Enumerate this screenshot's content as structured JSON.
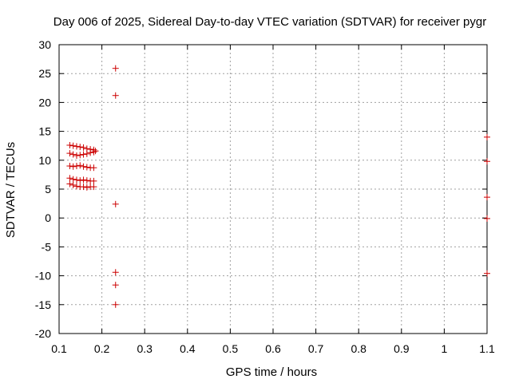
{
  "chart_data": {
    "type": "scatter",
    "title": "Day 006 of 2025, Sidereal Day-to-day VTEC variation (SDTVAR) for receiver pygr",
    "xlabel": "GPS time / hours",
    "ylabel": "SDTVAR / TECUs",
    "xlim": [
      0.1,
      1.1
    ],
    "ylim": [
      -20,
      30
    ],
    "grid": true,
    "marker": "+",
    "color": "#cc0000",
    "x_ticks": [
      {
        "value": 0.1,
        "label": "0.1"
      },
      {
        "value": 0.2,
        "label": "0.2"
      },
      {
        "value": 0.3,
        "label": "0.3"
      },
      {
        "value": 0.4,
        "label": "0.4"
      },
      {
        "value": 0.5,
        "label": "0.5"
      },
      {
        "value": 0.6,
        "label": "0.6"
      },
      {
        "value": 0.7,
        "label": "0.7"
      },
      {
        "value": 0.8,
        "label": "0.8"
      },
      {
        "value": 0.9,
        "label": "0.9"
      },
      {
        "value": 1.0,
        "label": "1"
      },
      {
        "value": 1.1,
        "label": "1.1"
      }
    ],
    "y_ticks": [
      {
        "value": 30,
        "label": "30"
      },
      {
        "value": 25,
        "label": "25"
      },
      {
        "value": 20,
        "label": "20"
      },
      {
        "value": 15,
        "label": "15"
      },
      {
        "value": 10,
        "label": "10"
      },
      {
        "value": 5,
        "label": "5"
      },
      {
        "value": 0,
        "label": "0"
      },
      {
        "value": -5,
        "label": "-5"
      },
      {
        "value": -10,
        "label": "-10"
      },
      {
        "value": -15,
        "label": "-15"
      },
      {
        "value": -20,
        "label": "-20"
      }
    ],
    "series": [
      {
        "name": "SDTVAR",
        "points": [
          [
            0.125,
            12.6
          ],
          [
            0.133,
            12.5
          ],
          [
            0.141,
            12.4
          ],
          [
            0.149,
            12.3
          ],
          [
            0.157,
            12.2
          ],
          [
            0.165,
            12.0
          ],
          [
            0.173,
            11.9
          ],
          [
            0.181,
            11.8
          ],
          [
            0.185,
            11.6
          ],
          [
            0.125,
            11.2
          ],
          [
            0.133,
            11.0
          ],
          [
            0.141,
            10.8
          ],
          [
            0.149,
            10.9
          ],
          [
            0.157,
            11.0
          ],
          [
            0.165,
            11.1
          ],
          [
            0.173,
            11.3
          ],
          [
            0.181,
            11.4
          ],
          [
            0.125,
            9.0
          ],
          [
            0.133,
            8.9
          ],
          [
            0.141,
            9.0
          ],
          [
            0.149,
            9.1
          ],
          [
            0.157,
            8.9
          ],
          [
            0.165,
            8.8
          ],
          [
            0.173,
            8.7
          ],
          [
            0.181,
            8.7
          ],
          [
            0.125,
            6.9
          ],
          [
            0.133,
            6.7
          ],
          [
            0.141,
            6.6
          ],
          [
            0.149,
            6.5
          ],
          [
            0.157,
            6.6
          ],
          [
            0.165,
            6.5
          ],
          [
            0.173,
            6.4
          ],
          [
            0.181,
            6.4
          ],
          [
            0.125,
            5.9
          ],
          [
            0.133,
            5.7
          ],
          [
            0.141,
            5.5
          ],
          [
            0.149,
            5.4
          ],
          [
            0.157,
            5.4
          ],
          [
            0.165,
            5.3
          ],
          [
            0.173,
            5.4
          ],
          [
            0.181,
            5.4
          ],
          [
            0.232,
            25.9
          ],
          [
            0.232,
            21.2
          ],
          [
            0.232,
            2.4
          ],
          [
            0.232,
            -9.4
          ],
          [
            0.232,
            -11.6
          ],
          [
            0.232,
            -15.0
          ],
          [
            1.1,
            14.0
          ],
          [
            1.1,
            9.8
          ],
          [
            1.1,
            3.6
          ],
          [
            1.1,
            -0.1
          ],
          [
            1.1,
            -9.6
          ]
        ]
      }
    ]
  }
}
